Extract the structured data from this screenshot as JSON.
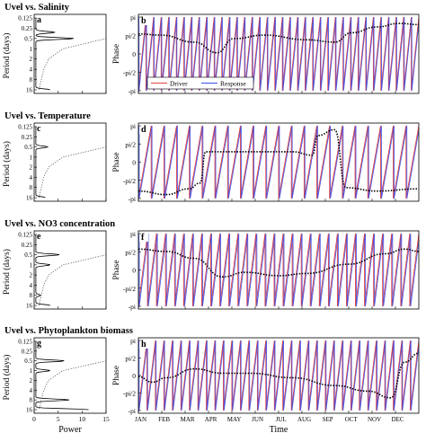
{
  "figure": {
    "xlabel_left": "Power",
    "xlabel_right": "Time",
    "ylabel_left": "Period (days)",
    "ylabel_right": "Phase"
  },
  "chart_data": [
    {
      "type": "line",
      "panel": "a",
      "title": "Uvel vs. Salinity",
      "ylabel": "Period (days)",
      "xlim": [
        0,
        15
      ],
      "y_ticks": [
        "0.125",
        "0.25",
        "0.5",
        "1",
        "2",
        "4",
        "8",
        "16"
      ],
      "series": [
        {
          "style": "solid",
          "peaks": [
            {
              "period": 0.5,
              "power": 8
            },
            {
              "period": 0.33,
              "power": 4
            },
            {
              "period": 16,
              "power": 3
            }
          ]
        },
        {
          "style": "dotted",
          "description_values": [
            [
              0.5,
              15
            ],
            [
              1,
              6
            ],
            [
              2,
              3
            ],
            [
              4,
              2
            ],
            [
              8,
              1.5
            ],
            [
              16,
              1
            ]
          ]
        }
      ]
    },
    {
      "type": "line",
      "panel": "b",
      "ylabel": "Phase",
      "y_ticks": [
        "pi",
        "pi/2",
        "0",
        "-pi/2",
        "-pi"
      ],
      "x_ticks": [
        "JAN",
        "FEB",
        "MAR",
        "APR",
        "MAY",
        "JUN",
        "JUL",
        "AUG",
        "SEP",
        "OCT",
        "NOV",
        "DEC"
      ],
      "legend": [
        "Driver",
        "Response"
      ],
      "series_colors": {
        "Driver": "#e8403a",
        "Response": "#3a4de8",
        "mean": "#000000"
      },
      "cycles_per_year": 37,
      "response_lag_rad": 0.5,
      "mean_phase_points": [
        [
          0,
          1.7
        ],
        [
          0.08,
          1.6
        ],
        [
          0.2,
          1.0
        ],
        [
          0.28,
          0.1
        ],
        [
          0.34,
          1.3
        ],
        [
          0.45,
          1.6
        ],
        [
          0.6,
          1.2
        ],
        [
          0.7,
          1.0
        ],
        [
          0.76,
          1.8
        ],
        [
          0.85,
          2.3
        ],
        [
          0.93,
          2.6
        ],
        [
          1,
          2.5
        ]
      ]
    },
    {
      "type": "line",
      "panel": "c",
      "title": "Uvel vs. Temperature",
      "ylabel": "Period (days)",
      "xlim": [
        0,
        15
      ],
      "y_ticks": [
        "0.125",
        "0.25",
        "0.5",
        "1",
        "2",
        "4",
        "8",
        "16"
      ],
      "series": [
        {
          "style": "solid",
          "peaks": [
            {
              "period": 0.5,
              "power": 2.5
            },
            {
              "period": 16,
              "power": 2
            }
          ]
        },
        {
          "style": "dotted",
          "description_values": [
            [
              0.5,
              15
            ],
            [
              1,
              6
            ],
            [
              2,
              3
            ],
            [
              4,
              2
            ],
            [
              8,
              1.5
            ],
            [
              16,
              1
            ]
          ]
        }
      ]
    },
    {
      "type": "line",
      "panel": "d",
      "ylabel": "Phase",
      "y_ticks": [
        "pi",
        "pi/2",
        "0",
        "-pi/2",
        "-pi"
      ],
      "x_ticks": [
        "JAN",
        "FEB",
        "MAR",
        "APR",
        "MAY",
        "JUN",
        "JUL",
        "AUG",
        "SEP",
        "OCT",
        "NOV",
        "DEC"
      ],
      "cycles_per_year": 22,
      "response_lag_rad": 0.4,
      "mean_phase_points": [
        [
          0,
          -2.5
        ],
        [
          0.1,
          -2.8
        ],
        [
          0.18,
          -2.3
        ],
        [
          0.22,
          -1.8
        ],
        [
          0.24,
          0.9
        ],
        [
          0.4,
          0.9
        ],
        [
          0.55,
          0.9
        ],
        [
          0.62,
          0.6
        ],
        [
          0.64,
          2.3
        ],
        [
          0.7,
          2.8
        ],
        [
          0.74,
          -2.2
        ],
        [
          0.85,
          -2.5
        ],
        [
          1,
          -2.3
        ]
      ]
    },
    {
      "type": "line",
      "panel": "e",
      "title": "Uvel vs. NO3 concentration",
      "ylabel": "Period (days)",
      "xlim": [
        0,
        15
      ],
      "y_ticks": [
        "0.125",
        "0.25",
        "0.5",
        "1",
        "2",
        "4",
        "8",
        "16"
      ],
      "series": [
        {
          "style": "solid",
          "peaks": [
            {
              "period": 0.5,
              "power": 5
            },
            {
              "period": 1,
              "power": 3
            },
            {
              "period": 8,
              "power": 1
            },
            {
              "period": 16,
              "power": 3
            }
          ]
        },
        {
          "style": "dotted",
          "description_values": [
            [
              0.5,
              15
            ],
            [
              1,
              6
            ],
            [
              2,
              3
            ],
            [
              4,
              2
            ],
            [
              8,
              1.5
            ],
            [
              16,
              1
            ]
          ]
        }
      ]
    },
    {
      "type": "line",
      "panel": "f",
      "ylabel": "Phase",
      "y_ticks": [
        "pi",
        "pi/2",
        "0",
        "-pi/2",
        "-pi"
      ],
      "x_ticks": [
        "JAN",
        "FEB",
        "MAR",
        "APR",
        "MAY",
        "JUN",
        "JUL",
        "AUG",
        "SEP",
        "OCT",
        "NOV",
        "DEC"
      ],
      "cycles_per_year": 31,
      "response_lag_rad": 0.6,
      "mean_phase_points": [
        [
          0,
          1.8
        ],
        [
          0.1,
          1.6
        ],
        [
          0.2,
          1.0
        ],
        [
          0.3,
          -0.6
        ],
        [
          0.38,
          -0.2
        ],
        [
          0.5,
          -0.5
        ],
        [
          0.6,
          -0.3
        ],
        [
          0.75,
          0.5
        ],
        [
          0.88,
          1.4
        ],
        [
          0.95,
          1.8
        ],
        [
          1,
          1.6
        ]
      ]
    },
    {
      "type": "line",
      "panel": "g",
      "title": "Uvel vs. Phytoplankton biomass",
      "ylabel": "Period (days)",
      "xlim": [
        0,
        15
      ],
      "x_ticks": [
        "0",
        "5",
        "10",
        "15"
      ],
      "xlabel": "Power",
      "y_ticks": [
        "0.125",
        "0.25",
        "0.5",
        "1",
        "2",
        "4",
        "8",
        "16"
      ],
      "series": [
        {
          "style": "solid",
          "peaks": [
            {
              "period": 0.5,
              "power": 6
            },
            {
              "period": 1,
              "power": 3
            },
            {
              "period": 8,
              "power": 7
            },
            {
              "period": 16,
              "power": 11
            }
          ]
        },
        {
          "style": "dotted",
          "description_values": [
            [
              0.5,
              15
            ],
            [
              1,
              6
            ],
            [
              2,
              3
            ],
            [
              4,
              2
            ],
            [
              8,
              1.5
            ],
            [
              16,
              1
            ]
          ]
        }
      ]
    },
    {
      "type": "line",
      "panel": "h",
      "ylabel": "Phase",
      "xlabel": "Time",
      "y_ticks": [
        "pi",
        "pi/2",
        "0",
        "-pi/2",
        "-pi"
      ],
      "x_ticks": [
        "JAN",
        "FEB",
        "MAR",
        "APR",
        "MAY",
        "JUN",
        "JUL",
        "AUG",
        "SEP",
        "OCT",
        "NOV",
        "DEC"
      ],
      "cycles_per_year": 33,
      "response_lag_rad": 0.5,
      "mean_phase_points": [
        [
          0,
          -0.1
        ],
        [
          0.05,
          -0.6
        ],
        [
          0.1,
          -0.2
        ],
        [
          0.2,
          0.6
        ],
        [
          0.3,
          0.2
        ],
        [
          0.4,
          0.2
        ],
        [
          0.55,
          -0.2
        ],
        [
          0.7,
          -0.9
        ],
        [
          0.82,
          -1.4
        ],
        [
          0.9,
          -2.0
        ],
        [
          0.95,
          1.2
        ],
        [
          1,
          2.0
        ]
      ]
    }
  ]
}
